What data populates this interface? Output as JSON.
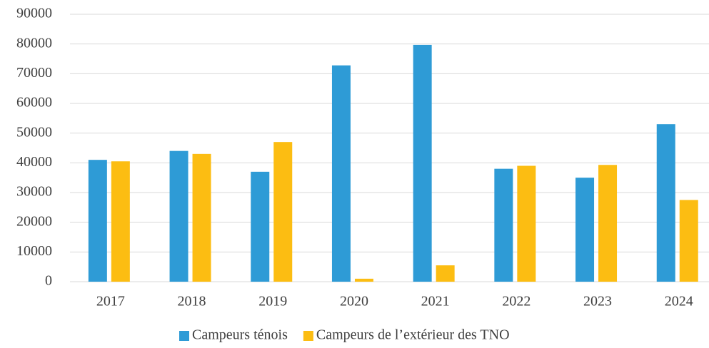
{
  "chart_data": {
    "type": "bar",
    "categories": [
      "2017",
      "2018",
      "2019",
      "2020",
      "2021",
      "2022",
      "2023",
      "2024"
    ],
    "series": [
      {
        "name": "Campeurs ténois",
        "color": "#2e9bd6",
        "values": [
          41000,
          44000,
          37000,
          72800,
          79700,
          38000,
          35000,
          53000
        ]
      },
      {
        "name": "Campeurs de l’extérieur des TNO",
        "color": "#fcbd12",
        "values": [
          40500,
          43000,
          47000,
          1000,
          5500,
          39000,
          39300,
          27500
        ]
      }
    ],
    "ylim": [
      0,
      90000
    ],
    "yticks": [
      0,
      10000,
      20000,
      30000,
      40000,
      50000,
      60000,
      70000,
      80000,
      90000
    ],
    "grid": true,
    "legend": "bottom"
  }
}
